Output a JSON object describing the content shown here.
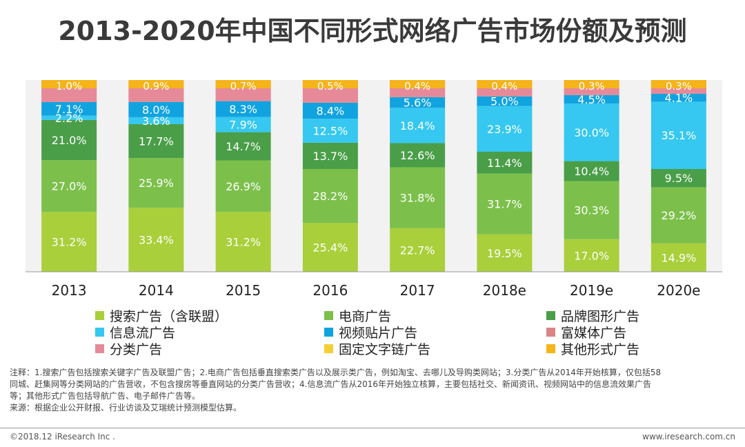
{
  "title": "2013-2020年中国不同形式网络广告市场份额及预测",
  "chart_data": {
    "type": "bar",
    "stacked": true,
    "title": "2013-2020年中国不同形式网络广告市场份额及预测",
    "categories": [
      "2013",
      "2014",
      "2015",
      "2016",
      "2017",
      "2018e",
      "2019e",
      "2020e"
    ],
    "ylim": [
      0,
      100
    ],
    "series": [
      {
        "name": "搜索广告（含联盟）",
        "color": "#a9cf3b",
        "values": [
          31.2,
          33.4,
          31.2,
          25.4,
          22.7,
          19.5,
          17.0,
          14.9
        ]
      },
      {
        "name": "电商广告",
        "color": "#7cc04b",
        "values": [
          27.0,
          25.9,
          26.9,
          28.2,
          31.8,
          31.7,
          30.3,
          29.2
        ]
      },
      {
        "name": "品牌图形广告",
        "color": "#4a9e48",
        "values": [
          21.0,
          17.7,
          14.7,
          13.7,
          12.6,
          11.4,
          10.4,
          9.5
        ]
      },
      {
        "name": "信息流广告",
        "color": "#36c8f0",
        "values": [
          2.2,
          3.6,
          7.9,
          12.5,
          18.4,
          23.9,
          30.0,
          35.1
        ]
      },
      {
        "name": "视频贴片广告",
        "color": "#11a3e0",
        "values": [
          7.1,
          8.0,
          8.3,
          8.4,
          5.6,
          5.0,
          4.5,
          4.1
        ]
      },
      {
        "name": "富媒体广告",
        "color": "#d88585",
        "values": [
          null,
          null,
          null,
          null,
          null,
          null,
          null,
          null
        ]
      },
      {
        "name": "分类广告",
        "color": "#e68a9a",
        "values": [
          null,
          null,
          null,
          null,
          null,
          null,
          null,
          null
        ]
      },
      {
        "name": "固定文字链广告",
        "color": "#f6cf35",
        "values": [
          null,
          null,
          null,
          null,
          null,
          null,
          null,
          null
        ]
      },
      {
        "name": "其他形式广告",
        "color": "#f4b41a",
        "values": [
          1.0,
          0.9,
          0.7,
          0.5,
          0.4,
          0.4,
          0.3,
          0.3
        ]
      }
    ],
    "legend": [
      {
        "name": "搜索广告（含联盟）",
        "color": "#a9cf3b"
      },
      {
        "name": "电商广告",
        "color": "#7cc04b"
      },
      {
        "name": "品牌图形广告",
        "color": "#4a9e48"
      },
      {
        "name": "信息流广告",
        "color": "#36c8f0"
      },
      {
        "name": "视频贴片广告",
        "color": "#11a3e0"
      },
      {
        "name": "富媒体广告",
        "color": "#d88585"
      },
      {
        "name": "分类广告",
        "color": "#e68a9a"
      },
      {
        "name": "固定文字链广告",
        "color": "#f6cf35"
      },
      {
        "name": "其他形式广告",
        "color": "#f4b41a"
      }
    ],
    "legend_position": "bottom"
  },
  "notes": {
    "line1": "注释：1.搜索广告包括搜索关键字广告及联盟广告；2.电商广告包括垂直搜索类广告以及展示类广告，例如淘宝、去哪儿及导购类网站；3.分类广告从2014年开始核算，仅包括58",
    "line2": "同城、赶集网等分类网站的广告营收，不包含搜房等垂直网站的分类广告营收；4.信息流广告从2016年开始独立核算，主要包括社交、新闻资讯、视频网站中的信息流效果广告",
    "line3": "等；其他形式广告包括导航广告、电子邮件广告等。",
    "line4": "来源：根据企业公开财报、行业访谈及艾瑞统计预测模型估算。"
  },
  "footer": {
    "copyright": "©2018.12 iResearch Inc .",
    "website": "www.iresearch.com.cn"
  },
  "colors": {
    "plot_background": "#f2f2f2",
    "axis": "#999999"
  }
}
